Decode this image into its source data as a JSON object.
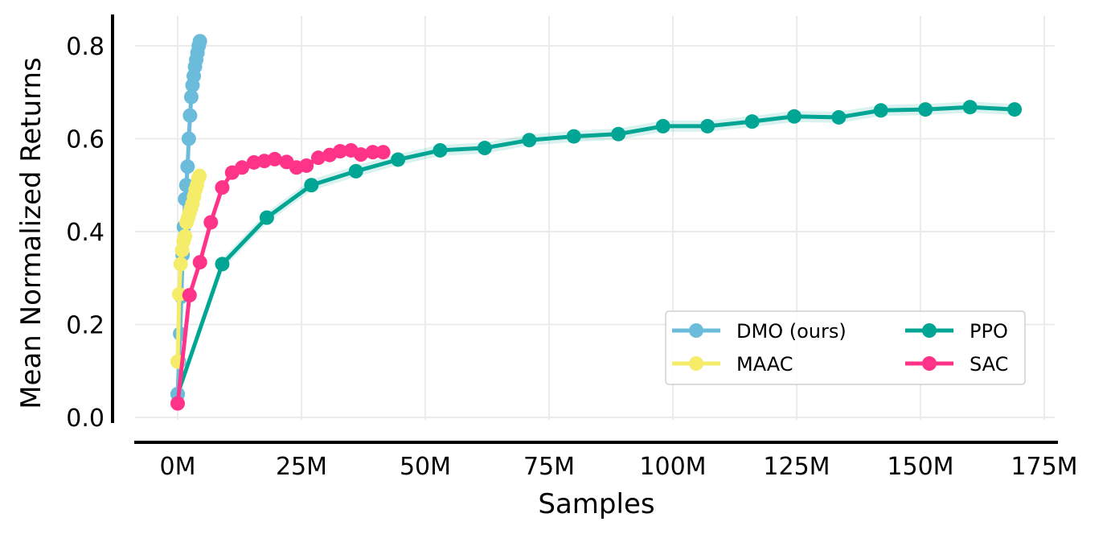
{
  "chart_data": {
    "type": "line",
    "title": "",
    "xlabel": "Samples",
    "ylabel": "Mean Normalized Returns",
    "xlim": [
      -8,
      178
    ],
    "ylim": [
      -0.005,
      0.83
    ],
    "grid": true,
    "legend_position": "lower-right",
    "x_ticks": [
      0,
      25,
      50,
      75,
      100,
      125,
      150,
      175
    ],
    "x_tick_labels": [
      "0M",
      "25M",
      "50M",
      "75M",
      "100M",
      "125M",
      "150M",
      "175M"
    ],
    "y_ticks": [
      0.0,
      0.2,
      0.4,
      0.6,
      0.8
    ],
    "y_tick_labels": [
      "0.0",
      "0.2",
      "0.4",
      "0.6",
      "0.8"
    ],
    "series": [
      {
        "name": "DMO (ours)",
        "color": "#6bbcdb",
        "x": [
          0.0,
          0.25,
          0.5,
          0.75,
          1.0,
          1.25,
          1.5,
          1.75,
          2.0,
          2.25,
          2.5,
          2.75,
          3.0,
          3.25,
          3.5,
          3.75,
          4.0,
          4.25,
          4.5
        ],
        "y": [
          0.05,
          0.12,
          0.18,
          0.26,
          0.35,
          0.41,
          0.47,
          0.5,
          0.54,
          0.6,
          0.65,
          0.69,
          0.715,
          0.735,
          0.755,
          0.77,
          0.785,
          0.8,
          0.81
        ]
      },
      {
        "name": "MAAC",
        "color": "#f5ec6a",
        "x": [
          0.0,
          0.3,
          0.6,
          0.9,
          1.2,
          1.5,
          1.8,
          2.1,
          2.4,
          2.7,
          3.0,
          3.3,
          3.6,
          3.9,
          4.2,
          4.4
        ],
        "y": [
          0.12,
          0.265,
          0.33,
          0.36,
          0.38,
          0.39,
          0.42,
          0.43,
          0.44,
          0.45,
          0.46,
          0.475,
          0.49,
          0.5,
          0.515,
          0.52
        ]
      },
      {
        "name": "PPO",
        "color": "#00a693",
        "x": [
          0,
          9,
          18,
          27,
          36,
          44.5,
          53,
          62,
          71,
          80,
          89,
          98,
          107,
          116,
          124.5,
          133.5,
          142,
          151,
          160,
          169
        ],
        "y": [
          0.05,
          0.33,
          0.43,
          0.5,
          0.53,
          0.555,
          0.575,
          0.58,
          0.597,
          0.605,
          0.61,
          0.627,
          0.627,
          0.637,
          0.648,
          0.646,
          0.661,
          0.663,
          0.668,
          0.663
        ],
        "band": 0.012
      },
      {
        "name": "SAC",
        "color": "#ff3388",
        "x": [
          0,
          2.4,
          4.5,
          6.7,
          9,
          11,
          13,
          15.4,
          17.5,
          19.6,
          22,
          24,
          26,
          28.4,
          30.7,
          32.8,
          35,
          37,
          39.4,
          41.5
        ],
        "y": [
          0.03,
          0.263,
          0.334,
          0.42,
          0.495,
          0.527,
          0.538,
          0.549,
          0.552,
          0.556,
          0.55,
          0.538,
          0.542,
          0.559,
          0.565,
          0.573,
          0.575,
          0.566,
          0.571,
          0.571
        ],
        "band": 0.008
      }
    ]
  }
}
